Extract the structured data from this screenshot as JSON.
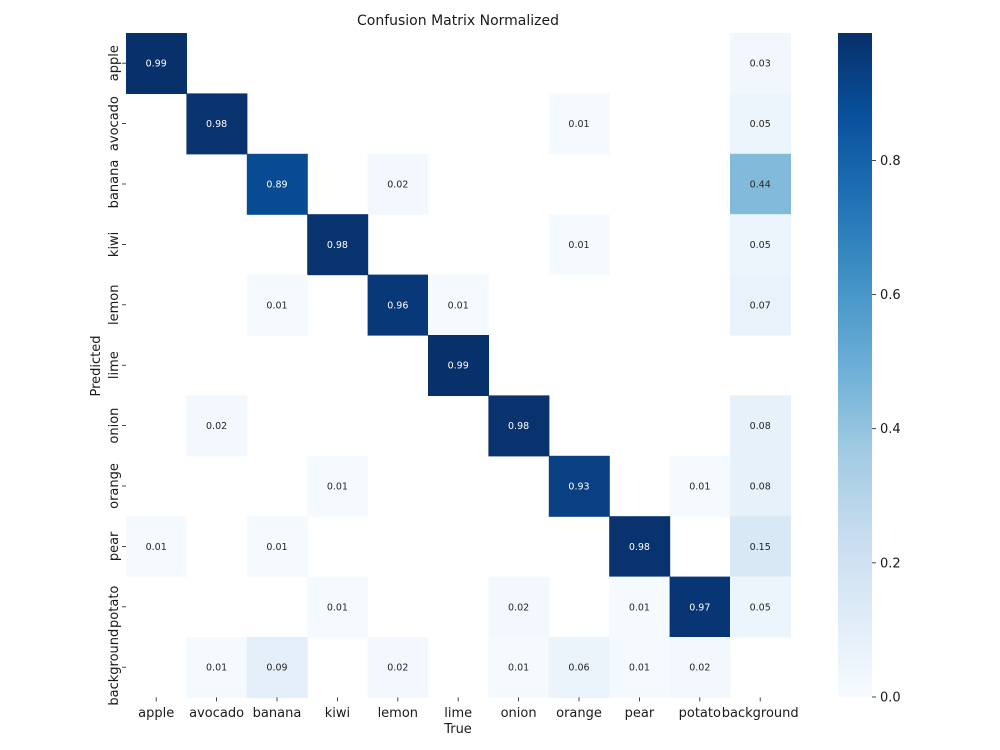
{
  "chart_data": {
    "type": "heatmap",
    "title": "Confusion Matrix Normalized",
    "xlabel": "True",
    "ylabel": "Predicted",
    "x_categories": [
      "apple",
      "avocado",
      "banana",
      "kiwi",
      "lemon",
      "lime",
      "onion",
      "orange",
      "pear",
      "potato",
      "background"
    ],
    "y_categories": [
      "apple",
      "avocado",
      "banana",
      "kiwi",
      "lemon",
      "lime",
      "onion",
      "orange",
      "pear",
      "potato",
      "background"
    ],
    "values": [
      [
        0.99,
        null,
        null,
        null,
        null,
        null,
        null,
        null,
        null,
        null,
        0.03
      ],
      [
        null,
        0.98,
        null,
        null,
        null,
        null,
        null,
        0.01,
        null,
        null,
        0.05
      ],
      [
        null,
        null,
        0.89,
        null,
        0.02,
        null,
        null,
        null,
        null,
        null,
        0.44
      ],
      [
        null,
        null,
        null,
        0.98,
        null,
        null,
        null,
        0.01,
        null,
        null,
        0.05
      ],
      [
        null,
        null,
        0.01,
        null,
        0.96,
        0.01,
        null,
        null,
        null,
        null,
        0.07
      ],
      [
        null,
        null,
        null,
        null,
        null,
        0.99,
        null,
        null,
        null,
        null,
        null
      ],
      [
        null,
        0.02,
        null,
        null,
        null,
        null,
        0.98,
        null,
        null,
        null,
        0.08
      ],
      [
        null,
        null,
        null,
        0.01,
        null,
        null,
        null,
        0.93,
        null,
        0.01,
        0.08
      ],
      [
        0.01,
        null,
        0.01,
        null,
        null,
        null,
        null,
        null,
        0.98,
        null,
        0.15
      ],
      [
        null,
        null,
        null,
        0.01,
        null,
        null,
        0.02,
        null,
        0.01,
        0.97,
        0.05
      ],
      [
        null,
        0.01,
        0.09,
        null,
        0.02,
        null,
        0.01,
        0.06,
        0.01,
        0.02,
        null
      ]
    ],
    "colormap": "Blues",
    "colorbar": {
      "range": [
        0.0,
        0.99
      ],
      "ticks": [
        0.0,
        0.2,
        0.4,
        0.6,
        0.8
      ],
      "tick_labels": [
        "0.0",
        "0.2",
        "0.4",
        "0.6",
        "0.8"
      ]
    },
    "colors": {
      "low": "#f7fbff",
      "high": "#08306b",
      "text_light": "#ffffff",
      "text_dark": "#262626"
    }
  }
}
